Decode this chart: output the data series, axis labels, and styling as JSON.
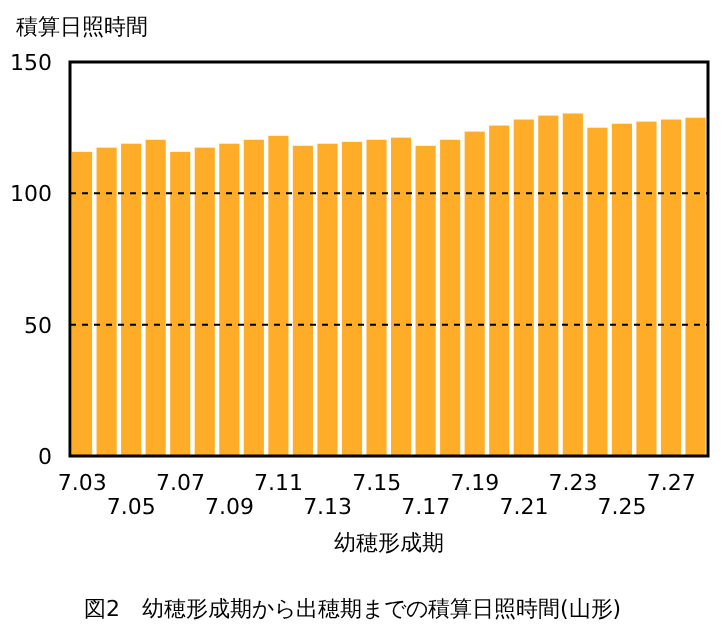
{
  "chart_data": {
    "type": "bar",
    "ylabel": "積算日照時間",
    "xlabel": "幼穂形成期",
    "annotations": [
      "図2　幼穂形成期から出穂期までの積算日照時間(山形)"
    ],
    "categories": [
      "7.03",
      null,
      "7.05",
      null,
      "7.07",
      null,
      "7.09",
      null,
      "7.11",
      null,
      "7.13",
      null,
      "7.15",
      null,
      "7.17",
      null,
      "7.19",
      null,
      "7.21",
      null,
      "7.23",
      null,
      "7.25",
      null,
      "7.27",
      null
    ],
    "values": [
      115.8,
      117.4,
      118.9,
      120.4,
      115.8,
      117.4,
      118.9,
      120.4,
      121.9,
      118.1,
      118.9,
      119.6,
      120.4,
      121.2,
      118.1,
      120.4,
      123.5,
      125.8,
      128.1,
      129.6,
      130.4,
      125,
      126.5,
      127.3,
      128.1,
      128.8
    ],
    "color": "#ffad29",
    "ylim": [
      0,
      150
    ],
    "yticks": [
      0,
      50,
      100,
      150
    ],
    "grid": "y"
  }
}
